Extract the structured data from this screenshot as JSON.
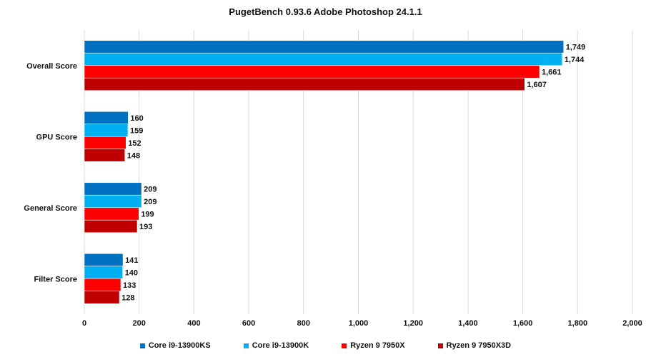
{
  "chart_data": {
    "type": "bar",
    "orientation": "horizontal",
    "title": "PugetBench 0.93.6 Adobe Photoshop 24.1.1",
    "categories": [
      "Overall Score",
      "GPU Score",
      "General Score",
      "Filter Score"
    ],
    "series": [
      {
        "name": "Core i9-13900KS",
        "color": "#0070c0",
        "values": [
          1749,
          160,
          209,
          141
        ],
        "labels": [
          "1,749",
          "160",
          "209",
          "141"
        ]
      },
      {
        "name": "Core i9-13900K",
        "color": "#00b0f0",
        "values": [
          1744,
          159,
          209,
          140
        ],
        "labels": [
          "1,744",
          "159",
          "209",
          "140"
        ]
      },
      {
        "name": "Ryzen 9 7950X",
        "color": "#ff0000",
        "values": [
          1661,
          152,
          199,
          133
        ],
        "labels": [
          "1,661",
          "152",
          "199",
          "133"
        ]
      },
      {
        "name": "Ryzen 9 7950X3D",
        "color": "#c00000",
        "values": [
          1607,
          148,
          193,
          128
        ],
        "labels": [
          "1,607",
          "148",
          "193",
          "128"
        ]
      }
    ],
    "xlim": [
      0,
      2000
    ],
    "xticks": [
      0,
      200,
      400,
      600,
      800,
      1000,
      1200,
      1400,
      1600,
      1800,
      2000
    ],
    "xtick_labels": [
      "0",
      "200",
      "400",
      "600",
      "800",
      "1,000",
      "1,200",
      "1,400",
      "1,600",
      "1,800",
      "2,000"
    ],
    "grid": true,
    "legend_position": "bottom"
  }
}
